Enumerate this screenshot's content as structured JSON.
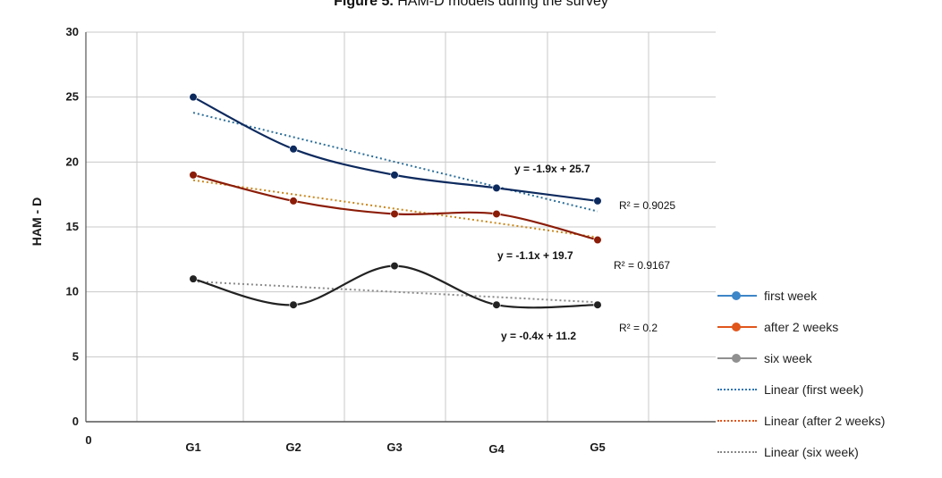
{
  "figure": {
    "title_bold": "Figure 5.",
    "title_rest": " HAM-D models during the survey"
  },
  "chart_data": {
    "type": "line",
    "categories": [
      "G1",
      "G2",
      "G3",
      "G4",
      "G5"
    ],
    "ylabel": "HAM - D",
    "xlabel": "",
    "ylim": [
      0,
      30
    ],
    "yticks": [
      "0",
      "5",
      "10",
      "15",
      "20",
      "25",
      "30"
    ],
    "x_origin_label": "0",
    "grid": true,
    "legend_position": "right",
    "series": [
      {
        "name": "first week",
        "values": [
          25,
          21,
          19,
          18,
          17
        ],
        "color": "#0d2a5e",
        "legend_color": "#3d86c8",
        "trend": {
          "name": "Linear (first week)",
          "slope": -1.9,
          "intercept": 25.7,
          "color": "#2d6f9a",
          "equation": "y = -1.9x + 25.7",
          "r2": "R² = 0.9025"
        }
      },
      {
        "name": "after 2 weeks",
        "values": [
          19,
          17,
          16,
          16,
          14
        ],
        "color": "#8b1c07",
        "legend_color": "#e0561b",
        "trend": {
          "name": "Linear (after 2 weeks)",
          "slope": -1.1,
          "intercept": 19.7,
          "color": "#c9871c",
          "equation": "y = -1.1x + 19.7",
          "r2": "R² = 0.9167"
        }
      },
      {
        "name": "six week",
        "values": [
          11,
          9,
          12,
          9,
          9
        ],
        "color": "#222222",
        "legend_color": "#909090",
        "trend": {
          "name": "Linear (six week)",
          "slope": -0.4,
          "intercept": 11.2,
          "color": "#8a8a8a",
          "equation": "y = -0.4x + 11.2",
          "r2": "R² = 0.2"
        }
      }
    ]
  }
}
